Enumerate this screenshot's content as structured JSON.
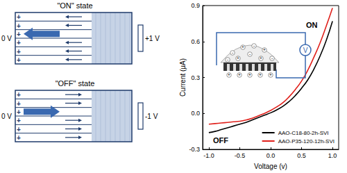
{
  "diagram": {
    "states": [
      {
        "label": "\"ON\" state",
        "left": "0 V",
        "right": "+1 V",
        "charge": "+",
        "arrow": "left"
      },
      {
        "label": "\"OFF\" state",
        "left": "0 V",
        "right": "-1 V",
        "charge": "+",
        "arrow": "right"
      }
    ],
    "inset": {
      "label": "V",
      "ions": [
        "-",
        "+"
      ]
    }
  },
  "chart_data": {
    "type": "line",
    "x_label": "Voltage (v)",
    "y_label": "Current (μA)",
    "x": [
      -1.0,
      -0.9,
      -0.8,
      -0.7,
      -0.6,
      -0.5,
      -0.4,
      -0.3,
      -0.2,
      -0.1,
      0.0,
      0.1,
      0.2,
      0.3,
      0.4,
      0.5,
      0.6,
      0.7,
      0.8,
      0.9,
      1.0
    ],
    "series": [
      {
        "name": "AAO-C18-80-2h-SVI",
        "color": "#000000",
        "values": [
          -0.16,
          -0.15,
          -0.135,
          -0.12,
          -0.105,
          -0.09,
          -0.075,
          -0.055,
          -0.035,
          -0.015,
          0.005,
          0.03,
          0.06,
          0.1,
          0.15,
          0.21,
          0.28,
          0.37,
          0.48,
          0.61,
          0.77
        ]
      },
      {
        "name": "AAO-P35-120-12h-SVI",
        "color": "#e0201b",
        "values": [
          -0.09,
          -0.085,
          -0.08,
          -0.075,
          -0.07,
          -0.065,
          -0.055,
          -0.04,
          -0.02,
          0.0,
          0.025,
          0.055,
          0.09,
          0.14,
          0.2,
          0.27,
          0.36,
          0.47,
          0.59,
          0.73,
          0.88
        ]
      }
    ],
    "xlim": [
      -1.1,
      1.1
    ],
    "xticks": [
      {
        "value": -1.0,
        "label": "-1.0"
      },
      {
        "value": -0.5,
        "label": "-0.5"
      },
      {
        "value": 0,
        "label": "0.0"
      },
      {
        "value": 0.5,
        "label": "0.5"
      },
      {
        "value": 1.0,
        "label": "1.0"
      }
    ],
    "ylim": [
      -0.3,
      0.9
    ],
    "yticks": [
      -0.3,
      {
        "value": 0,
        "label": "0.0"
      },
      0.3,
      0.6,
      0.9
    ],
    "legend": "lower right",
    "grid": false,
    "annotations": [
      "ON",
      "OFF"
    ]
  }
}
